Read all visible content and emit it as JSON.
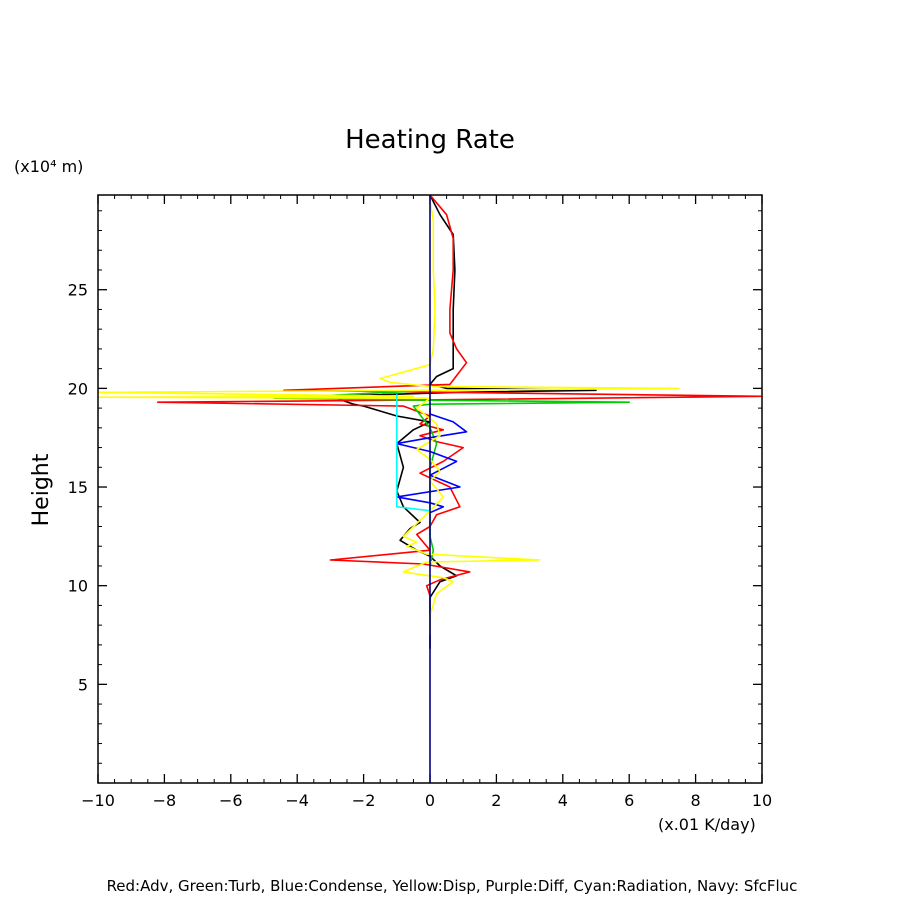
{
  "chart_data": {
    "type": "line",
    "title": "Heating Rate",
    "ylabel": "Height",
    "yunits": "(x10⁴ m)",
    "xunits": "(x.01 K/day)",
    "caption": "Red:Adv, Green:Turb, Blue:Condense, Yellow:Disp, Purple:Diff, Cyan:Radiation, Navy: SfcFluc",
    "xlim": [
      -10,
      10
    ],
    "ylim": [
      0,
      29.8
    ],
    "xticks": [
      -10,
      -8,
      -6,
      -4,
      -2,
      0,
      2,
      4,
      6,
      8,
      10
    ],
    "yticks": [
      5,
      10,
      15,
      20,
      25
    ],
    "xtick_labels": [
      "−10",
      "−8",
      "−6",
      "−4",
      "−2",
      "0",
      "2",
      "4",
      "6",
      "8",
      "10"
    ],
    "ytick_labels": [
      "5",
      "10",
      "15",
      "20",
      "25"
    ],
    "grid": false,
    "series": [
      {
        "color": "#000000",
        "points": [
          [
            0,
            29.8
          ],
          [
            0.3,
            28.8
          ],
          [
            0.7,
            27.8
          ],
          [
            0.75,
            26
          ],
          [
            0.7,
            24
          ],
          [
            0.7,
            22
          ],
          [
            0.7,
            21
          ],
          [
            0.2,
            20.6
          ],
          [
            0,
            20.2
          ],
          [
            0.5,
            20
          ],
          [
            5,
            19.9
          ],
          [
            0.8,
            19.8
          ],
          [
            -3,
            19.6
          ],
          [
            -2.3,
            19.2
          ],
          [
            -2.0,
            19.1
          ],
          [
            -1,
            18.6
          ],
          [
            0,
            18.3
          ],
          [
            -0.5,
            17.9
          ],
          [
            -1.0,
            17.2
          ],
          [
            -0.8,
            16.0
          ],
          [
            -1.0,
            14.8
          ],
          [
            -0.8,
            14.0
          ],
          [
            -0.3,
            13.2
          ],
          [
            -0.6,
            12.9
          ],
          [
            -0.9,
            12.3
          ],
          [
            -0.4,
            11.8
          ],
          [
            0,
            11.5
          ],
          [
            0.3,
            11.0
          ],
          [
            0.8,
            10.5
          ],
          [
            0.3,
            10.2
          ],
          [
            0,
            9.4
          ],
          [
            0,
            8.0
          ],
          [
            0,
            6.8
          ]
        ]
      },
      {
        "color": "#ff0000",
        "points": [
          [
            0,
            29.8
          ],
          [
            0.5,
            28.8
          ],
          [
            0.7,
            27.6
          ],
          [
            0.7,
            26
          ],
          [
            0.6,
            24
          ],
          [
            0.6,
            22.8
          ],
          [
            0.8,
            22
          ],
          [
            1.1,
            21.3
          ],
          [
            0.6,
            20.2
          ],
          [
            -4.4,
            19.9
          ],
          [
            0.5,
            19.8
          ],
          [
            10,
            19.6
          ],
          [
            -1,
            19.4
          ],
          [
            -8.2,
            19.3
          ],
          [
            -0.8,
            19.1
          ],
          [
            0,
            18.6
          ],
          [
            -0.3,
            18.2
          ],
          [
            0.4,
            17.9
          ],
          [
            -0.3,
            17.6
          ],
          [
            0.2,
            17.3
          ],
          [
            1.0,
            17.0
          ],
          [
            0.4,
            16.3
          ],
          [
            -0.3,
            15.7
          ],
          [
            0.6,
            15.0
          ],
          [
            0.9,
            14.0
          ],
          [
            0.2,
            13.6
          ],
          [
            0,
            13.0
          ],
          [
            -0.4,
            12.6
          ],
          [
            0,
            11.8
          ],
          [
            -3,
            11.3
          ],
          [
            -0.2,
            11.1
          ],
          [
            1.2,
            10.7
          ],
          [
            0.3,
            10.3
          ],
          [
            -0.1,
            10.0
          ],
          [
            0,
            9.5
          ]
        ]
      },
      {
        "color": "#00cc00",
        "points": [
          [
            0,
            20.2
          ],
          [
            0,
            19.9
          ],
          [
            -4.7,
            19.5
          ],
          [
            0,
            19.4
          ],
          [
            6,
            19.3
          ],
          [
            0,
            19.2
          ],
          [
            -0.5,
            19.1
          ],
          [
            0,
            18.0
          ],
          [
            0.2,
            17.2
          ],
          [
            0,
            16.0
          ],
          [
            0,
            13.5
          ],
          [
            0,
            12.5
          ],
          [
            0.1,
            11.8
          ],
          [
            0,
            11.0
          ]
        ]
      },
      {
        "color": "#0000ff",
        "points": [
          [
            0,
            19.0
          ],
          [
            0,
            18.7
          ],
          [
            0.7,
            18.3
          ],
          [
            1.1,
            17.8
          ],
          [
            0,
            17.5
          ],
          [
            -1.0,
            17.2
          ],
          [
            0,
            16.8
          ],
          [
            0.8,
            16.3
          ],
          [
            0,
            15.6
          ],
          [
            0.9,
            15.0
          ],
          [
            -1.0,
            14.5
          ],
          [
            0,
            14.2
          ],
          [
            0.4,
            14.0
          ],
          [
            0,
            13.7
          ]
        ]
      },
      {
        "color": "#ffff00",
        "points": [
          [
            0,
            29.5
          ],
          [
            0.1,
            28.5
          ],
          [
            0.1,
            26
          ],
          [
            0.15,
            24
          ],
          [
            0.1,
            22
          ],
          [
            0,
            21.2
          ],
          [
            -1.5,
            20.5
          ],
          [
            -1.2,
            20.3
          ],
          [
            0,
            20.1
          ],
          [
            7.5,
            20.0
          ],
          [
            0.2,
            19.9
          ],
          [
            -10,
            19.8
          ],
          [
            -0.5,
            19.6
          ],
          [
            -10,
            19.55
          ],
          [
            0,
            19.5
          ],
          [
            -0.4,
            19.0
          ],
          [
            0.2,
            18.2
          ],
          [
            0.3,
            17.6
          ],
          [
            0,
            17.3
          ],
          [
            -0.4,
            16.9
          ],
          [
            0,
            16.4
          ],
          [
            0.3,
            15.8
          ],
          [
            0,
            15.3
          ],
          [
            0.4,
            14.5
          ],
          [
            0,
            13.8
          ],
          [
            -0.8,
            12.5
          ],
          [
            -0.4,
            12.2
          ],
          [
            -0.7,
            12.0
          ],
          [
            -0.1,
            11.6
          ],
          [
            3.3,
            11.3
          ],
          [
            -0.1,
            11.2
          ],
          [
            -0.8,
            10.7
          ],
          [
            0.4,
            10.4
          ],
          [
            0.7,
            10.2
          ],
          [
            0.2,
            9.6
          ],
          [
            0,
            8.5
          ],
          [
            0,
            7.5
          ]
        ]
      },
      {
        "color": "#00ffff",
        "points": [
          [
            -1.0,
            19.7
          ],
          [
            -1.0,
            14.0
          ],
          [
            0,
            13.8
          ]
        ]
      },
      {
        "color": "#000080",
        "points": [
          [
            0,
            29.8
          ],
          [
            0,
            0
          ]
        ]
      }
    ]
  }
}
